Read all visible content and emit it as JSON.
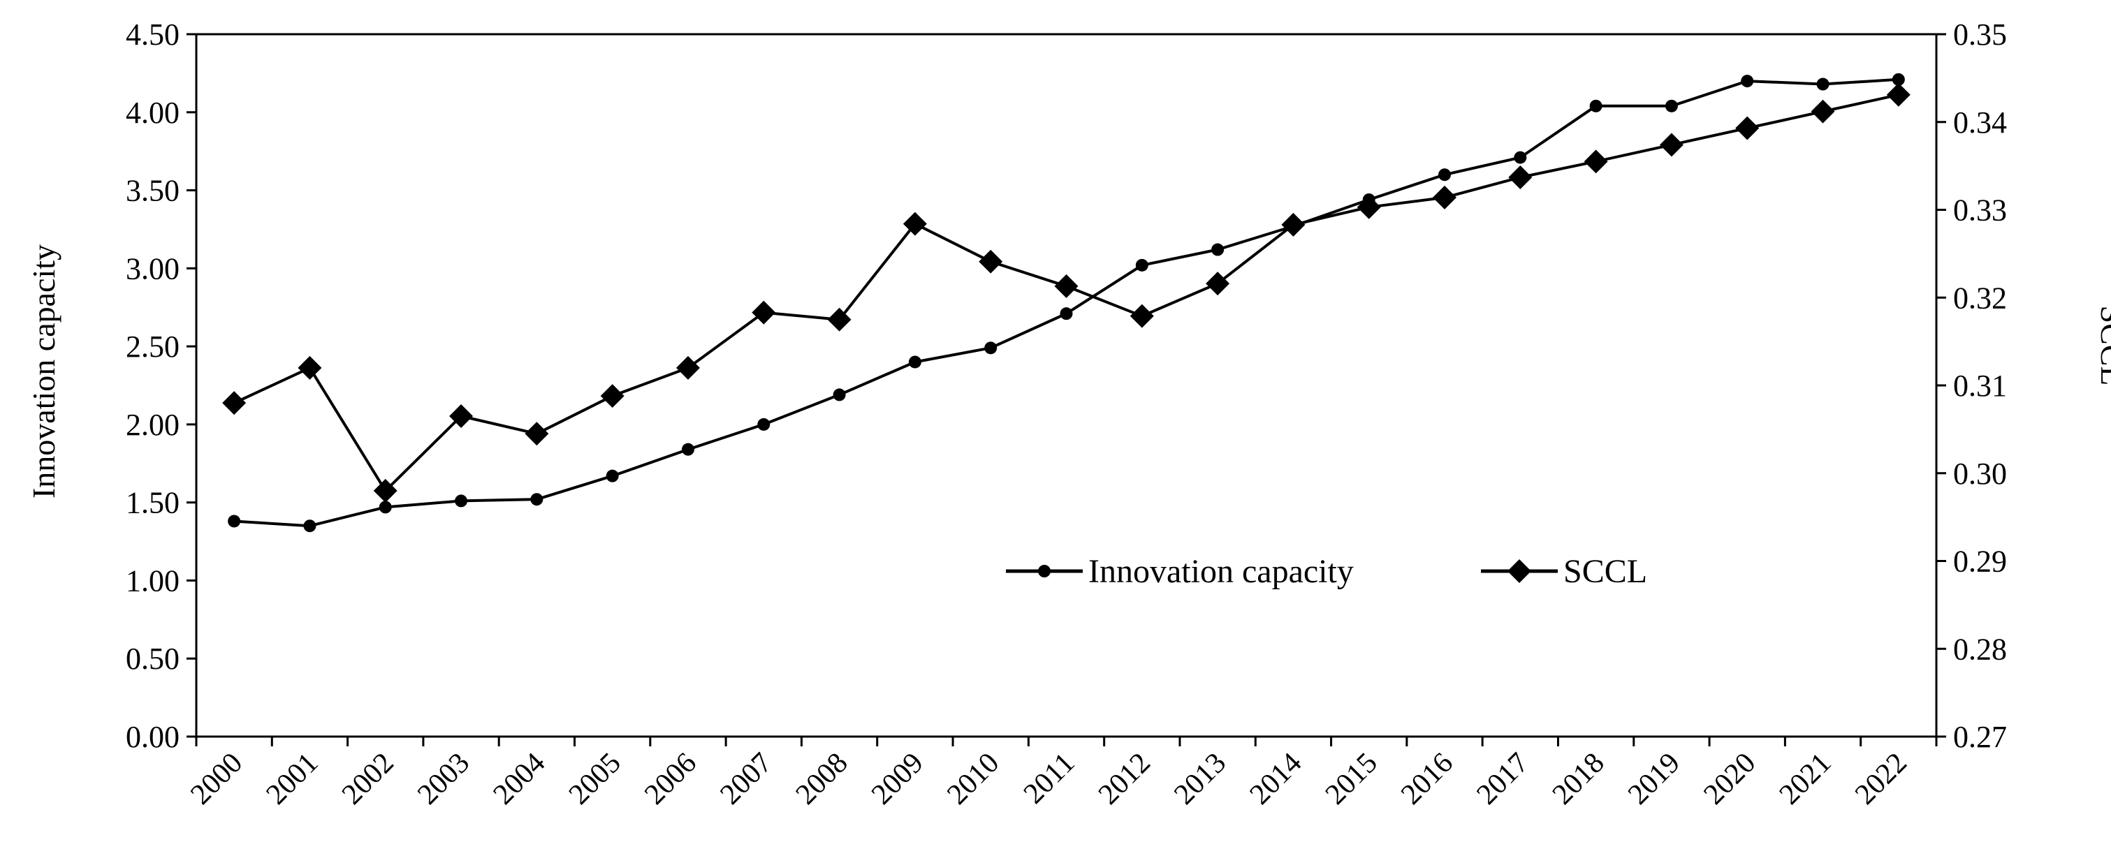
{
  "chart_data": {
    "type": "line",
    "title": "",
    "x": [
      "2000",
      "2001",
      "2002",
      "2003",
      "2004",
      "2005",
      "2006",
      "2007",
      "2008",
      "2009",
      "2010",
      "2011",
      "2012",
      "2013",
      "2014",
      "2015",
      "2016",
      "2017",
      "2018",
      "2019",
      "2020",
      "2021",
      "2022"
    ],
    "xlabel": "",
    "y_left": {
      "label": "Innovation capacity",
      "range": [
        0,
        4.5
      ],
      "ticks": [
        "0.00",
        "0.50",
        "1.00",
        "1.50",
        "2.00",
        "2.50",
        "3.00",
        "3.50",
        "4.00",
        "4.50"
      ]
    },
    "y_right": {
      "label": "SCCL",
      "range": [
        0.27,
        0.35
      ],
      "ticks": [
        "0.27",
        "0.28",
        "0.29",
        "0.30",
        "0.31",
        "0.32",
        "0.33",
        "0.34",
        "0.35"
      ]
    },
    "series": [
      {
        "name": "Innovation capacity",
        "axis": "left",
        "marker": "circle",
        "values": [
          1.38,
          1.35,
          1.47,
          1.51,
          1.52,
          1.67,
          1.84,
          2.0,
          2.19,
          2.4,
          2.49,
          2.71,
          3.02,
          3.12,
          3.27,
          3.44,
          3.6,
          3.71,
          4.04,
          4.04,
          4.2,
          4.18,
          4.21
        ]
      },
      {
        "name": "SCCL",
        "axis": "right",
        "marker": "diamond",
        "values": [
          0.308,
          0.312,
          0.298,
          0.3065,
          0.3045,
          0.3088,
          0.312,
          0.3183,
          0.3175,
          0.3284,
          0.3241,
          0.3213,
          0.3179,
          0.3216,
          0.3283,
          0.3303,
          0.3314,
          0.3337,
          0.3355,
          0.3374,
          0.3393,
          0.3412,
          0.3431
        ]
      }
    ],
    "legend": {
      "position": "center-right",
      "entries": [
        "Innovation capacity",
        "SCCL"
      ]
    },
    "grid": false,
    "colors": {
      "line": "#000000",
      "background": "#ffffff"
    }
  }
}
